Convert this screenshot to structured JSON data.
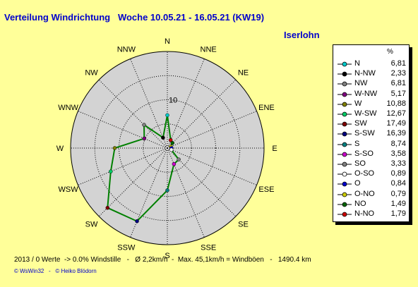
{
  "header": {
    "title": "Verteilung Windrichtung   Woche 10.05.21 - 16.05.21 (KW19)",
    "station": "Iserlohn"
  },
  "chart_data": {
    "type": "radar",
    "title": "Verteilung Windrichtung   Woche 10.05.21 - 16.05.21 (KW19)",
    "directions": [
      "N",
      "NNE",
      "NE",
      "ENE",
      "E",
      "ESE",
      "SE",
      "SSE",
      "S",
      "SSW",
      "SW",
      "WSW",
      "W",
      "WNW",
      "NW",
      "NNW"
    ],
    "radial_tick_label": "10",
    "radial_max": 20,
    "ring_count": 3,
    "line_color": "#008000",
    "disc_color": "#d3d3d3",
    "values": {
      "N": 6.81,
      "NNE": 1.79,
      "NE": 1.49,
      "ENE": 0.79,
      "E": 0.84,
      "ESE": 0.89,
      "SE": 3.33,
      "SSE": 3.58,
      "S": 8.74,
      "SSW": 16.39,
      "SW": 17.49,
      "WSW": 12.67,
      "W": 10.88,
      "WNW": 5.17,
      "NW": 6.81,
      "NNW": 2.33
    },
    "legend": {
      "unit": "%",
      "entries": [
        {
          "label": "N",
          "value": "6,81",
          "color": "#00cccc"
        },
        {
          "label": "N-NW",
          "value": "2,33",
          "color": "#000000"
        },
        {
          "label": "NW",
          "value": "6,81",
          "color": "#808080"
        },
        {
          "label": "W-NW",
          "value": "5,17",
          "color": "#800080"
        },
        {
          "label": "W",
          "value": "10,88",
          "color": "#808000"
        },
        {
          "label": "W-SW",
          "value": "12,67",
          "color": "#00cc66"
        },
        {
          "label": "SW",
          "value": "17,49",
          "color": "#800000"
        },
        {
          "label": "S-SW",
          "value": "16,39",
          "color": "#000080"
        },
        {
          "label": "S",
          "value": "8,74",
          "color": "#008080"
        },
        {
          "label": "S-SO",
          "value": "3,58",
          "color": "#cc00cc"
        },
        {
          "label": "SO",
          "value": "3,33",
          "color": "#808080"
        },
        {
          "label": "O-SO",
          "value": "0,89",
          "color": "#ffffff"
        },
        {
          "label": "O",
          "value": "0,84",
          "color": "#0000cc"
        },
        {
          "label": "O-NO",
          "value": "0,79",
          "color": "#cccc00"
        },
        {
          "label": "NO",
          "value": "1,49",
          "color": "#006400"
        },
        {
          "label": "N-NO",
          "value": "1,79",
          "color": "#cc0000"
        }
      ]
    },
    "legend_placement": "right"
  },
  "footer": {
    "stats": "2013 / 0 Werte  -> 0.0% Windstille   -   Ø 2,2km/h  -  Max. 45,1km/h = Windböen   -   1490.4 km",
    "credits": "© WsWin32   -   © Heiko Blödorn"
  }
}
